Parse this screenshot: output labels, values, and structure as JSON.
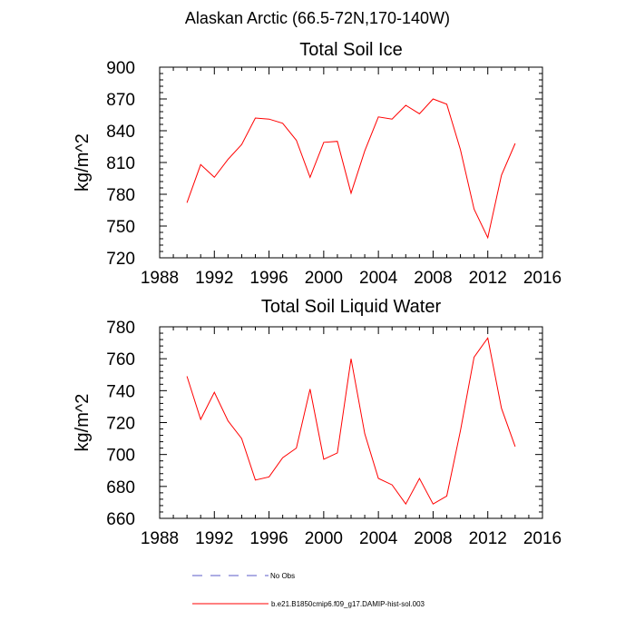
{
  "figure": {
    "suptitle": "Alaskan Arctic (66.5-72N,170-140W)"
  },
  "colors": {
    "series": "#ff0000",
    "obs": "#5b5bc8",
    "axis": "#000000"
  },
  "legend": [
    {
      "name": "No Obs",
      "style": "dashed",
      "color": "#5b5bc8"
    },
    {
      "name": "b.e21.B1850cmip6.f09_g17.DAMIP-hist-sol.003",
      "style": "solid",
      "color": "#ff0000"
    }
  ],
  "chart_data": [
    {
      "type": "line",
      "title": "Total Soil Ice",
      "xlabel": "",
      "ylabel": "kg/m^2",
      "xlim": [
        1988,
        2016
      ],
      "ylim": [
        720,
        900
      ],
      "xticks": [
        1988,
        1992,
        1996,
        2000,
        2004,
        2008,
        2012,
        2016
      ],
      "yticks": [
        720,
        750,
        780,
        810,
        840,
        870,
        900
      ],
      "grid": false,
      "x": [
        1990,
        1991,
        1992,
        1993,
        1994,
        1995,
        1996,
        1997,
        1998,
        1999,
        2000,
        2001,
        2002,
        2003,
        2004,
        2005,
        2006,
        2007,
        2008,
        2009,
        2010,
        2011,
        2012,
        2013,
        2014
      ],
      "series": [
        {
          "name": "b.e21.B1850cmip6.f09_g17.DAMIP-hist-sol.003",
          "values": [
            772,
            808,
            796,
            813,
            827,
            852,
            851,
            847,
            831,
            796,
            829,
            830,
            781,
            821,
            853,
            851,
            864,
            856,
            870,
            865,
            822,
            766,
            739,
            798,
            828
          ]
        }
      ]
    },
    {
      "type": "line",
      "title": "Total Soil Liquid Water",
      "xlabel": "",
      "ylabel": "kg/m^2",
      "xlim": [
        1988,
        2016
      ],
      "ylim": [
        660,
        780
      ],
      "xticks": [
        1988,
        1992,
        1996,
        2000,
        2004,
        2008,
        2012,
        2016
      ],
      "yticks": [
        660,
        680,
        700,
        720,
        740,
        760,
        780
      ],
      "grid": false,
      "x": [
        1990,
        1991,
        1992,
        1993,
        1994,
        1995,
        1996,
        1997,
        1998,
        1999,
        2000,
        2001,
        2002,
        2003,
        2004,
        2005,
        2006,
        2007,
        2008,
        2009,
        2010,
        2011,
        2012,
        2013,
        2014
      ],
      "series": [
        {
          "name": "b.e21.B1850cmip6.f09_g17.DAMIP-hist-sol.003",
          "values": [
            749,
            722,
            739,
            721,
            710,
            684,
            686,
            698,
            704,
            741,
            697,
            701,
            760,
            713,
            685,
            681,
            669,
            685,
            669,
            674,
            715,
            761,
            773,
            729,
            705
          ]
        }
      ]
    }
  ]
}
